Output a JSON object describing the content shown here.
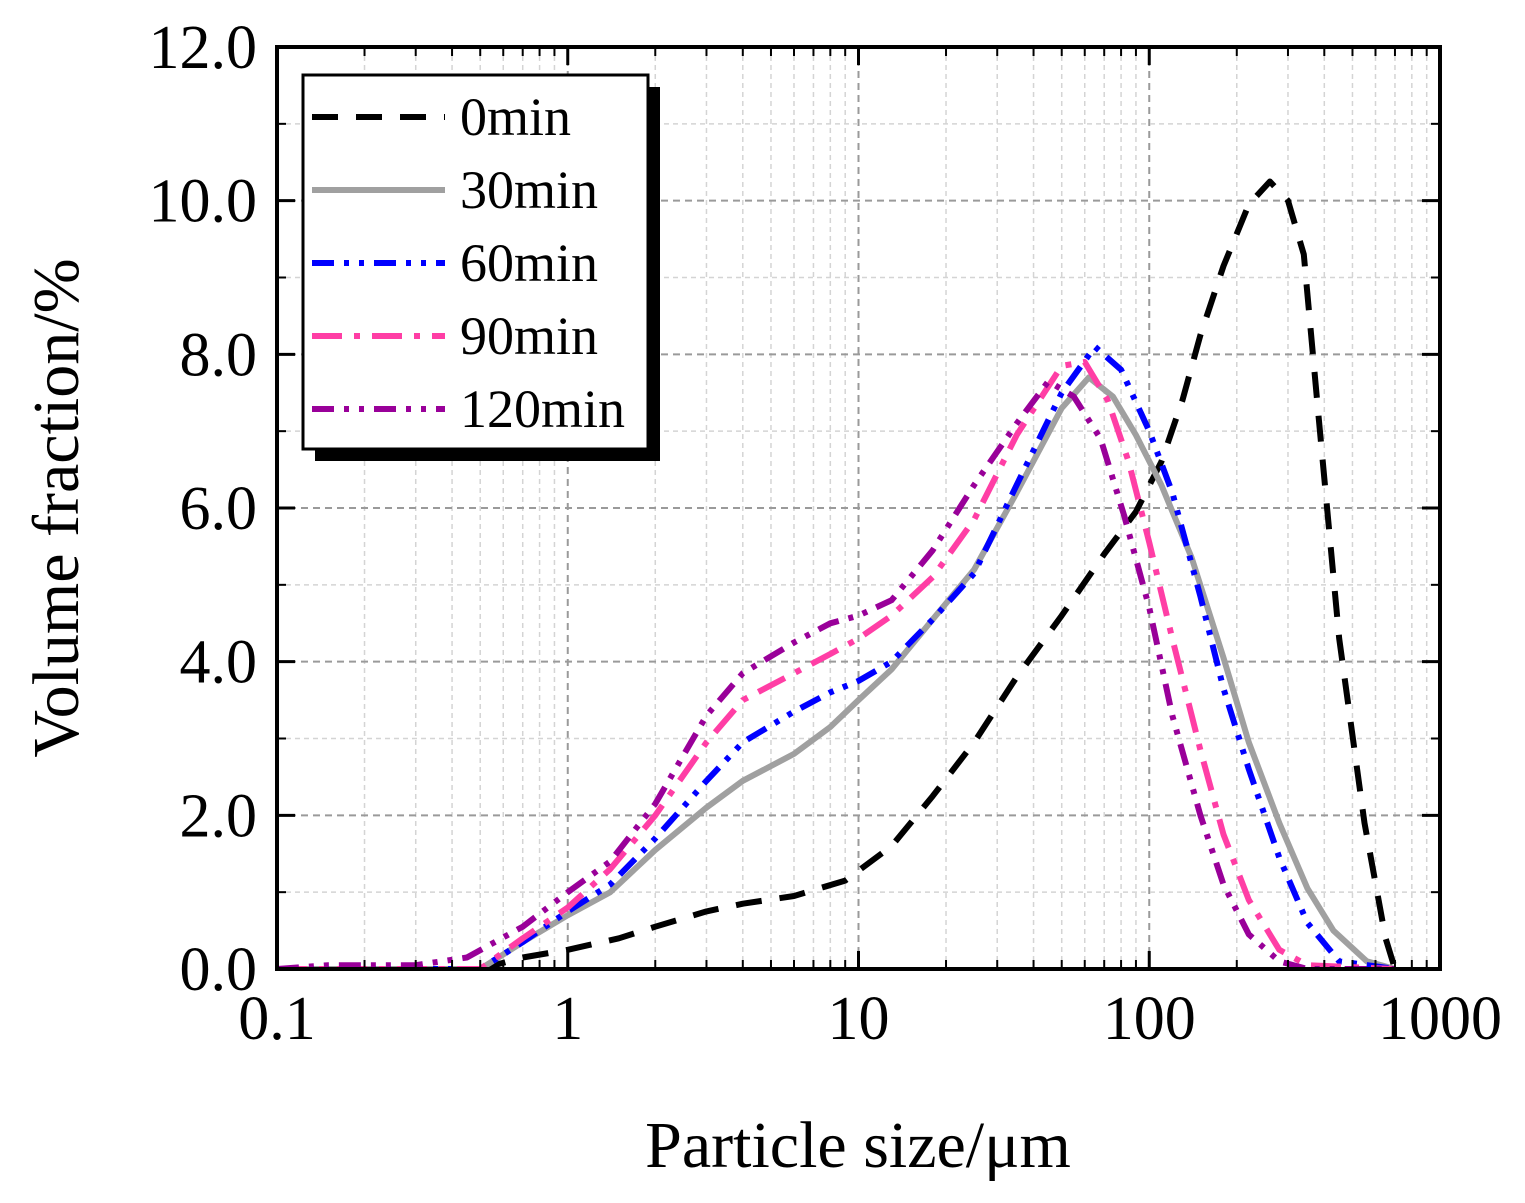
{
  "chart_data": {
    "type": "line",
    "xlabel": "Particle size/μm",
    "ylabel": "Volume fraction/%",
    "x_scale": "log",
    "xlim": [
      0.1,
      1000
    ],
    "ylim": [
      0,
      12
    ],
    "x_ticks": [
      "0.1",
      "1",
      "10",
      "100",
      "1000"
    ],
    "y_ticks": [
      "0.0",
      "2.0",
      "4.0",
      "6.0",
      "8.0",
      "10.0",
      "12.0"
    ],
    "grid": true,
    "legend_position": "top-left",
    "series": [
      {
        "name": "0min",
        "color": "#000000",
        "dash": "dash",
        "points": [
          [
            0.5,
            0.0
          ],
          [
            0.7,
            0.15
          ],
          [
            1.0,
            0.25
          ],
          [
            1.5,
            0.4
          ],
          [
            2.0,
            0.55
          ],
          [
            3.0,
            0.75
          ],
          [
            4.0,
            0.85
          ],
          [
            6.0,
            0.95
          ],
          [
            9.0,
            1.15
          ],
          [
            13.0,
            1.6
          ],
          [
            18.0,
            2.25
          ],
          [
            25.0,
            2.95
          ],
          [
            35.0,
            3.8
          ],
          [
            50.0,
            4.6
          ],
          [
            70.0,
            5.4
          ],
          [
            90.0,
            5.95
          ],
          [
            110.0,
            6.6
          ],
          [
            130.0,
            7.4
          ],
          [
            150.0,
            8.25
          ],
          [
            180.0,
            9.15
          ],
          [
            220.0,
            9.95
          ],
          [
            260.0,
            10.25
          ],
          [
            300.0,
            10.0
          ],
          [
            340.0,
            9.3
          ],
          [
            380.0,
            7.3
          ],
          [
            450.0,
            4.3
          ],
          [
            550.0,
            1.9
          ],
          [
            650.0,
            0.4
          ],
          [
            700.0,
            0.0
          ]
        ]
      },
      {
        "name": "30min",
        "color": "#a0a0a0",
        "dash": "solid",
        "points": [
          [
            0.1,
            0.0
          ],
          [
            0.5,
            0.0
          ],
          [
            0.7,
            0.35
          ],
          [
            1.0,
            0.7
          ],
          [
            1.4,
            1.0
          ],
          [
            2.0,
            1.55
          ],
          [
            3.0,
            2.1
          ],
          [
            4.0,
            2.45
          ],
          [
            6.0,
            2.8
          ],
          [
            8.0,
            3.15
          ],
          [
            10.0,
            3.5
          ],
          [
            13.0,
            3.9
          ],
          [
            18.0,
            4.55
          ],
          [
            25.0,
            5.2
          ],
          [
            35.0,
            6.2
          ],
          [
            50.0,
            7.3
          ],
          [
            62.0,
            7.7
          ],
          [
            75.0,
            7.45
          ],
          [
            90.0,
            6.95
          ],
          [
            110.0,
            6.3
          ],
          [
            140.0,
            5.35
          ],
          [
            180.0,
            4.05
          ],
          [
            220.0,
            2.95
          ],
          [
            280.0,
            1.9
          ],
          [
            350.0,
            1.05
          ],
          [
            430.0,
            0.5
          ],
          [
            560.0,
            0.1
          ],
          [
            700.0,
            0.0
          ]
        ]
      },
      {
        "name": "60min",
        "color": "#0000ff",
        "dash": "dashdotdot",
        "points": [
          [
            0.1,
            0.0
          ],
          [
            0.5,
            0.0
          ],
          [
            0.7,
            0.35
          ],
          [
            1.0,
            0.75
          ],
          [
            1.4,
            1.1
          ],
          [
            2.0,
            1.7
          ],
          [
            3.0,
            2.45
          ],
          [
            4.0,
            2.95
          ],
          [
            6.0,
            3.35
          ],
          [
            8.0,
            3.6
          ],
          [
            10.0,
            3.75
          ],
          [
            13.0,
            4.0
          ],
          [
            18.0,
            4.55
          ],
          [
            25.0,
            5.15
          ],
          [
            35.0,
            6.3
          ],
          [
            50.0,
            7.5
          ],
          [
            65.0,
            8.1
          ],
          [
            80.0,
            7.8
          ],
          [
            100.0,
            7.0
          ],
          [
            120.0,
            6.2
          ],
          [
            150.0,
            4.85
          ],
          [
            180.0,
            3.65
          ],
          [
            220.0,
            2.6
          ],
          [
            280.0,
            1.45
          ],
          [
            350.0,
            0.6
          ],
          [
            450.0,
            0.1
          ],
          [
            700.0,
            0.0
          ]
        ]
      },
      {
        "name": "90min",
        "color": "#ff3ea5",
        "dash": "dashdot",
        "points": [
          [
            0.1,
            0.0
          ],
          [
            0.5,
            0.0
          ],
          [
            0.7,
            0.4
          ],
          [
            1.0,
            0.8
          ],
          [
            1.4,
            1.3
          ],
          [
            2.0,
            2.0
          ],
          [
            3.0,
            2.95
          ],
          [
            4.0,
            3.5
          ],
          [
            6.0,
            3.85
          ],
          [
            8.0,
            4.1
          ],
          [
            10.0,
            4.3
          ],
          [
            13.0,
            4.6
          ],
          [
            18.0,
            5.1
          ],
          [
            25.0,
            5.85
          ],
          [
            35.0,
            6.95
          ],
          [
            50.0,
            7.85
          ],
          [
            60.0,
            7.9
          ],
          [
            72.0,
            7.4
          ],
          [
            85.0,
            6.6
          ],
          [
            100.0,
            5.55
          ],
          [
            120.0,
            4.3
          ],
          [
            150.0,
            2.85
          ],
          [
            180.0,
            1.75
          ],
          [
            220.0,
            0.9
          ],
          [
            280.0,
            0.25
          ],
          [
            350.0,
            0.05
          ],
          [
            700.0,
            0.0
          ]
        ]
      },
      {
        "name": "120min",
        "color": "#990099",
        "dash": "dashdotdot",
        "points": [
          [
            0.1,
            0.0
          ],
          [
            0.15,
            0.05
          ],
          [
            0.3,
            0.05
          ],
          [
            0.45,
            0.15
          ],
          [
            0.7,
            0.55
          ],
          [
            1.0,
            1.0
          ],
          [
            1.4,
            1.4
          ],
          [
            2.0,
            2.15
          ],
          [
            3.0,
            3.3
          ],
          [
            4.0,
            3.85
          ],
          [
            6.0,
            4.25
          ],
          [
            8.0,
            4.5
          ],
          [
            10.0,
            4.6
          ],
          [
            13.0,
            4.8
          ],
          [
            18.0,
            5.45
          ],
          [
            25.0,
            6.3
          ],
          [
            35.0,
            7.1
          ],
          [
            45.0,
            7.65
          ],
          [
            55.0,
            7.45
          ],
          [
            68.0,
            6.9
          ],
          [
            82.0,
            5.9
          ],
          [
            100.0,
            4.7
          ],
          [
            120.0,
            3.3
          ],
          [
            150.0,
            2.0
          ],
          [
            180.0,
            1.1
          ],
          [
            220.0,
            0.45
          ],
          [
            280.0,
            0.1
          ],
          [
            350.0,
            0.0
          ],
          [
            700.0,
            0.0
          ]
        ]
      }
    ]
  }
}
